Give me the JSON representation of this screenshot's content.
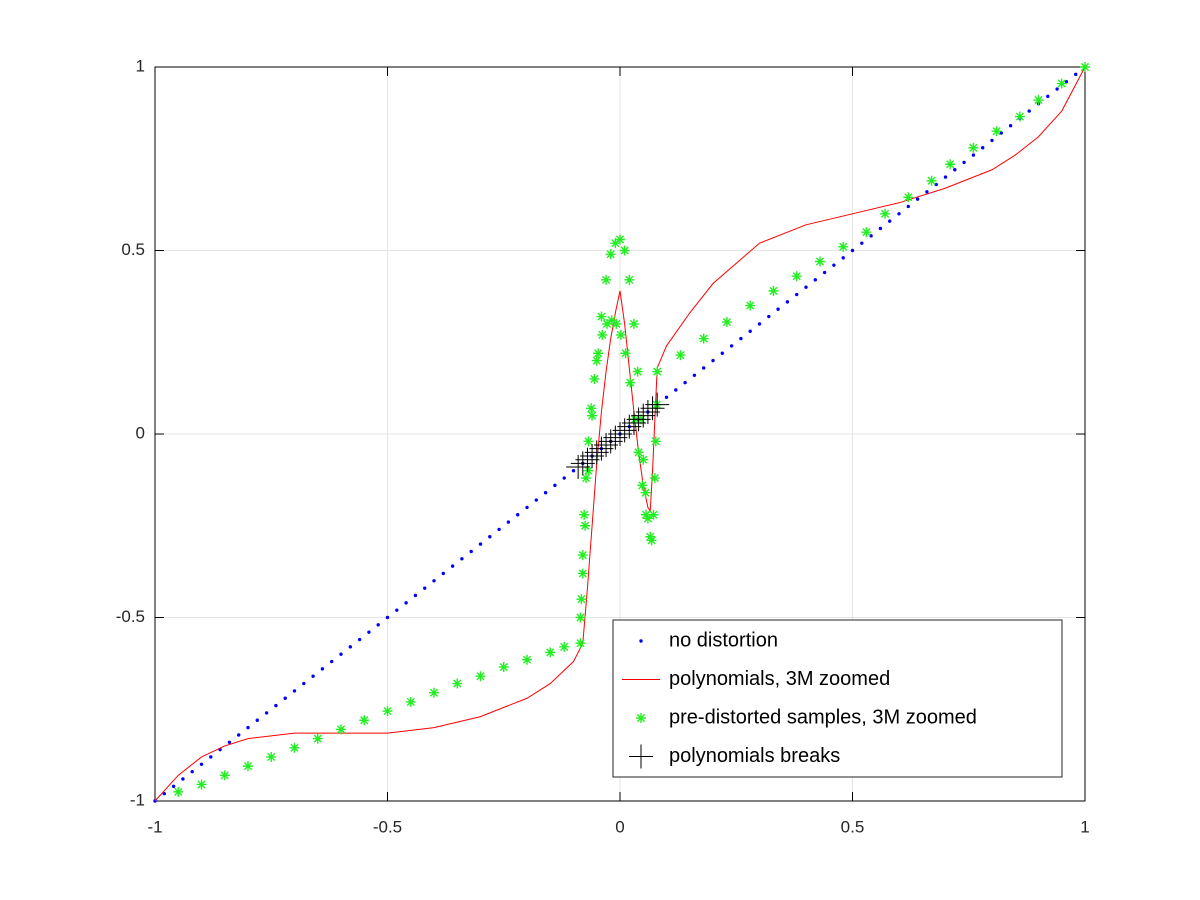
{
  "chart_data": {
    "type": "line",
    "xlim": [
      -1,
      1
    ],
    "ylim": [
      -1,
      1
    ],
    "xticks": [
      -1,
      -0.5,
      0,
      0.5,
      1
    ],
    "yticks": [
      -1,
      -0.5,
      0,
      0.5,
      1
    ],
    "grid": true,
    "legend": "southeast",
    "series": [
      {
        "name": "no distortion",
        "color": "#0000ff",
        "style": "dots",
        "x": [
          -1,
          -0.98,
          -0.96,
          -0.94,
          -0.92,
          -0.9,
          -0.88,
          -0.86,
          -0.84,
          -0.82,
          -0.8,
          -0.78,
          -0.76,
          -0.74,
          -0.72,
          -0.7,
          -0.68,
          -0.66,
          -0.64,
          -0.62,
          -0.6,
          -0.58,
          -0.56,
          -0.54,
          -0.52,
          -0.5,
          -0.48,
          -0.46,
          -0.44,
          -0.42,
          -0.4,
          -0.38,
          -0.36,
          -0.34,
          -0.32,
          -0.3,
          -0.28,
          -0.26,
          -0.24,
          -0.22,
          -0.2,
          -0.18,
          -0.16,
          -0.14,
          -0.12,
          -0.1,
          -0.08,
          -0.06,
          -0.04,
          -0.02,
          0,
          0.02,
          0.04,
          0.06,
          0.08,
          0.1,
          0.12,
          0.14,
          0.16,
          0.18,
          0.2,
          0.22,
          0.24,
          0.26,
          0.28,
          0.3,
          0.32,
          0.34,
          0.36,
          0.38,
          0.4,
          0.42,
          0.44,
          0.46,
          0.48,
          0.5,
          0.52,
          0.54,
          0.56,
          0.58,
          0.6,
          0.62,
          0.64,
          0.66,
          0.68,
          0.7,
          0.72,
          0.74,
          0.76,
          0.78,
          0.8,
          0.82,
          0.84,
          0.86,
          0.88,
          0.9,
          0.92,
          0.94,
          0.96,
          0.98,
          1
        ],
        "values": [
          -1,
          -0.98,
          -0.96,
          -0.94,
          -0.92,
          -0.9,
          -0.88,
          -0.86,
          -0.84,
          -0.82,
          -0.8,
          -0.78,
          -0.76,
          -0.74,
          -0.72,
          -0.7,
          -0.68,
          -0.66,
          -0.64,
          -0.62,
          -0.6,
          -0.58,
          -0.56,
          -0.54,
          -0.52,
          -0.5,
          -0.48,
          -0.46,
          -0.44,
          -0.42,
          -0.4,
          -0.38,
          -0.36,
          -0.34,
          -0.32,
          -0.3,
          -0.28,
          -0.26,
          -0.24,
          -0.22,
          -0.2,
          -0.18,
          -0.16,
          -0.14,
          -0.12,
          -0.1,
          -0.08,
          -0.06,
          -0.04,
          -0.02,
          0,
          0.02,
          0.04,
          0.06,
          0.08,
          0.1,
          0.12,
          0.14,
          0.16,
          0.18,
          0.2,
          0.22,
          0.24,
          0.26,
          0.28,
          0.3,
          0.32,
          0.34,
          0.36,
          0.38,
          0.4,
          0.42,
          0.44,
          0.46,
          0.48,
          0.5,
          0.52,
          0.54,
          0.56,
          0.58,
          0.6,
          0.62,
          0.64,
          0.66,
          0.68,
          0.7,
          0.72,
          0.74,
          0.76,
          0.78,
          0.8,
          0.82,
          0.84,
          0.86,
          0.88,
          0.9,
          0.92,
          0.94,
          0.96,
          0.98,
          1
        ]
      },
      {
        "name": "polynomials, 3M zoomed",
        "color": "#ff0000",
        "style": "line",
        "x": [
          -1,
          -0.95,
          -0.9,
          -0.85,
          -0.8,
          -0.7,
          -0.6,
          -0.5,
          -0.4,
          -0.3,
          -0.2,
          -0.15,
          -0.1,
          -0.08,
          -0.07,
          -0.06,
          -0.05,
          -0.04,
          -0.03,
          -0.02,
          -0.01,
          0,
          0.01,
          0.02,
          0.03,
          0.04,
          0.05,
          0.06,
          0.065,
          0.07,
          0.08,
          0.1,
          0.15,
          0.2,
          0.3,
          0.4,
          0.5,
          0.6,
          0.7,
          0.8,
          0.85,
          0.9,
          0.95,
          1
        ],
        "values": [
          -1,
          -0.93,
          -0.88,
          -0.85,
          -0.83,
          -0.815,
          -0.815,
          -0.815,
          -0.8,
          -0.77,
          -0.72,
          -0.68,
          -0.62,
          -0.57,
          -0.42,
          -0.25,
          -0.08,
          0.06,
          0.17,
          0.26,
          0.33,
          0.39,
          0.3,
          0.18,
          0.06,
          -0.05,
          -0.14,
          -0.2,
          -0.21,
          -0.1,
          0.18,
          0.24,
          0.33,
          0.41,
          0.52,
          0.57,
          0.6,
          0.63,
          0.67,
          0.72,
          0.76,
          0.81,
          0.88,
          1
        ]
      },
      {
        "name": "pre-distorted samples, 3M zoomed",
        "color": "#22ee22",
        "style": "star",
        "x": [
          -0.95,
          -0.9,
          -0.85,
          -0.8,
          -0.75,
          -0.7,
          -0.65,
          -0.6,
          -0.55,
          -0.5,
          -0.45,
          -0.4,
          -0.35,
          -0.3,
          -0.25,
          -0.2,
          -0.15,
          -0.12,
          -0.085,
          -0.083,
          -0.08,
          -0.077,
          -0.073,
          -0.068,
          -0.062,
          -0.055,
          -0.047,
          -0.038,
          -0.028,
          -0.018,
          -0.008,
          0.002,
          0.012,
          0.022,
          0.032,
          0.04,
          0.048,
          0.056,
          -0.085,
          -0.08,
          -0.075,
          -0.068,
          -0.06,
          -0.05,
          -0.04,
          -0.03,
          -0.02,
          -0.01,
          0,
          0.01,
          0.02,
          0.03,
          0.038,
          0.045,
          0.05,
          0.055,
          0.06,
          0.065,
          0.068,
          0.072,
          0.075,
          0.077,
          0.079,
          0.08,
          0.13,
          0.18,
          0.23,
          0.28,
          0.33,
          0.38,
          0.43,
          0.48,
          0.53,
          0.57,
          0.62,
          0.67,
          0.71,
          0.76,
          0.81,
          0.86,
          0.9,
          0.95,
          1
        ],
        "values": [
          -0.975,
          -0.955,
          -0.93,
          -0.905,
          -0.88,
          -0.855,
          -0.83,
          -0.805,
          -0.78,
          -0.755,
          -0.73,
          -0.705,
          -0.68,
          -0.66,
          -0.635,
          -0.615,
          -0.595,
          -0.58,
          -0.57,
          -0.45,
          -0.33,
          -0.22,
          -0.12,
          -0.02,
          0.07,
          0.15,
          0.22,
          0.27,
          0.3,
          0.31,
          0.3,
          0.27,
          0.22,
          0.14,
          0.04,
          -0.05,
          -0.14,
          -0.22,
          -0.5,
          -0.38,
          -0.25,
          -0.1,
          0.05,
          0.2,
          0.32,
          0.42,
          0.49,
          0.52,
          0.53,
          0.5,
          0.42,
          0.3,
          0.17,
          0.04,
          -0.07,
          -0.16,
          -0.23,
          -0.28,
          -0.29,
          -0.22,
          -0.12,
          -0.02,
          0.08,
          0.17,
          0.215,
          0.26,
          0.305,
          0.35,
          0.39,
          0.43,
          0.47,
          0.51,
          0.55,
          0.6,
          0.645,
          0.69,
          0.735,
          0.78,
          0.825,
          0.865,
          0.91,
          0.955,
          1
        ]
      },
      {
        "name": "polynomials breaks",
        "color": "#000000",
        "style": "plus",
        "x": [
          -0.09,
          -0.08,
          -0.07,
          -0.06,
          -0.05,
          -0.04,
          -0.03,
          -0.02,
          -0.01,
          0,
          0.01,
          0.02,
          0.03,
          0.04,
          0.05,
          0.06,
          0.07,
          0.08
        ],
        "values": [
          -0.09,
          -0.08,
          -0.07,
          -0.06,
          -0.05,
          -0.04,
          -0.03,
          -0.02,
          -0.01,
          0,
          0.01,
          0.02,
          0.03,
          0.04,
          0.05,
          0.06,
          0.07,
          0.08
        ]
      }
    ]
  }
}
